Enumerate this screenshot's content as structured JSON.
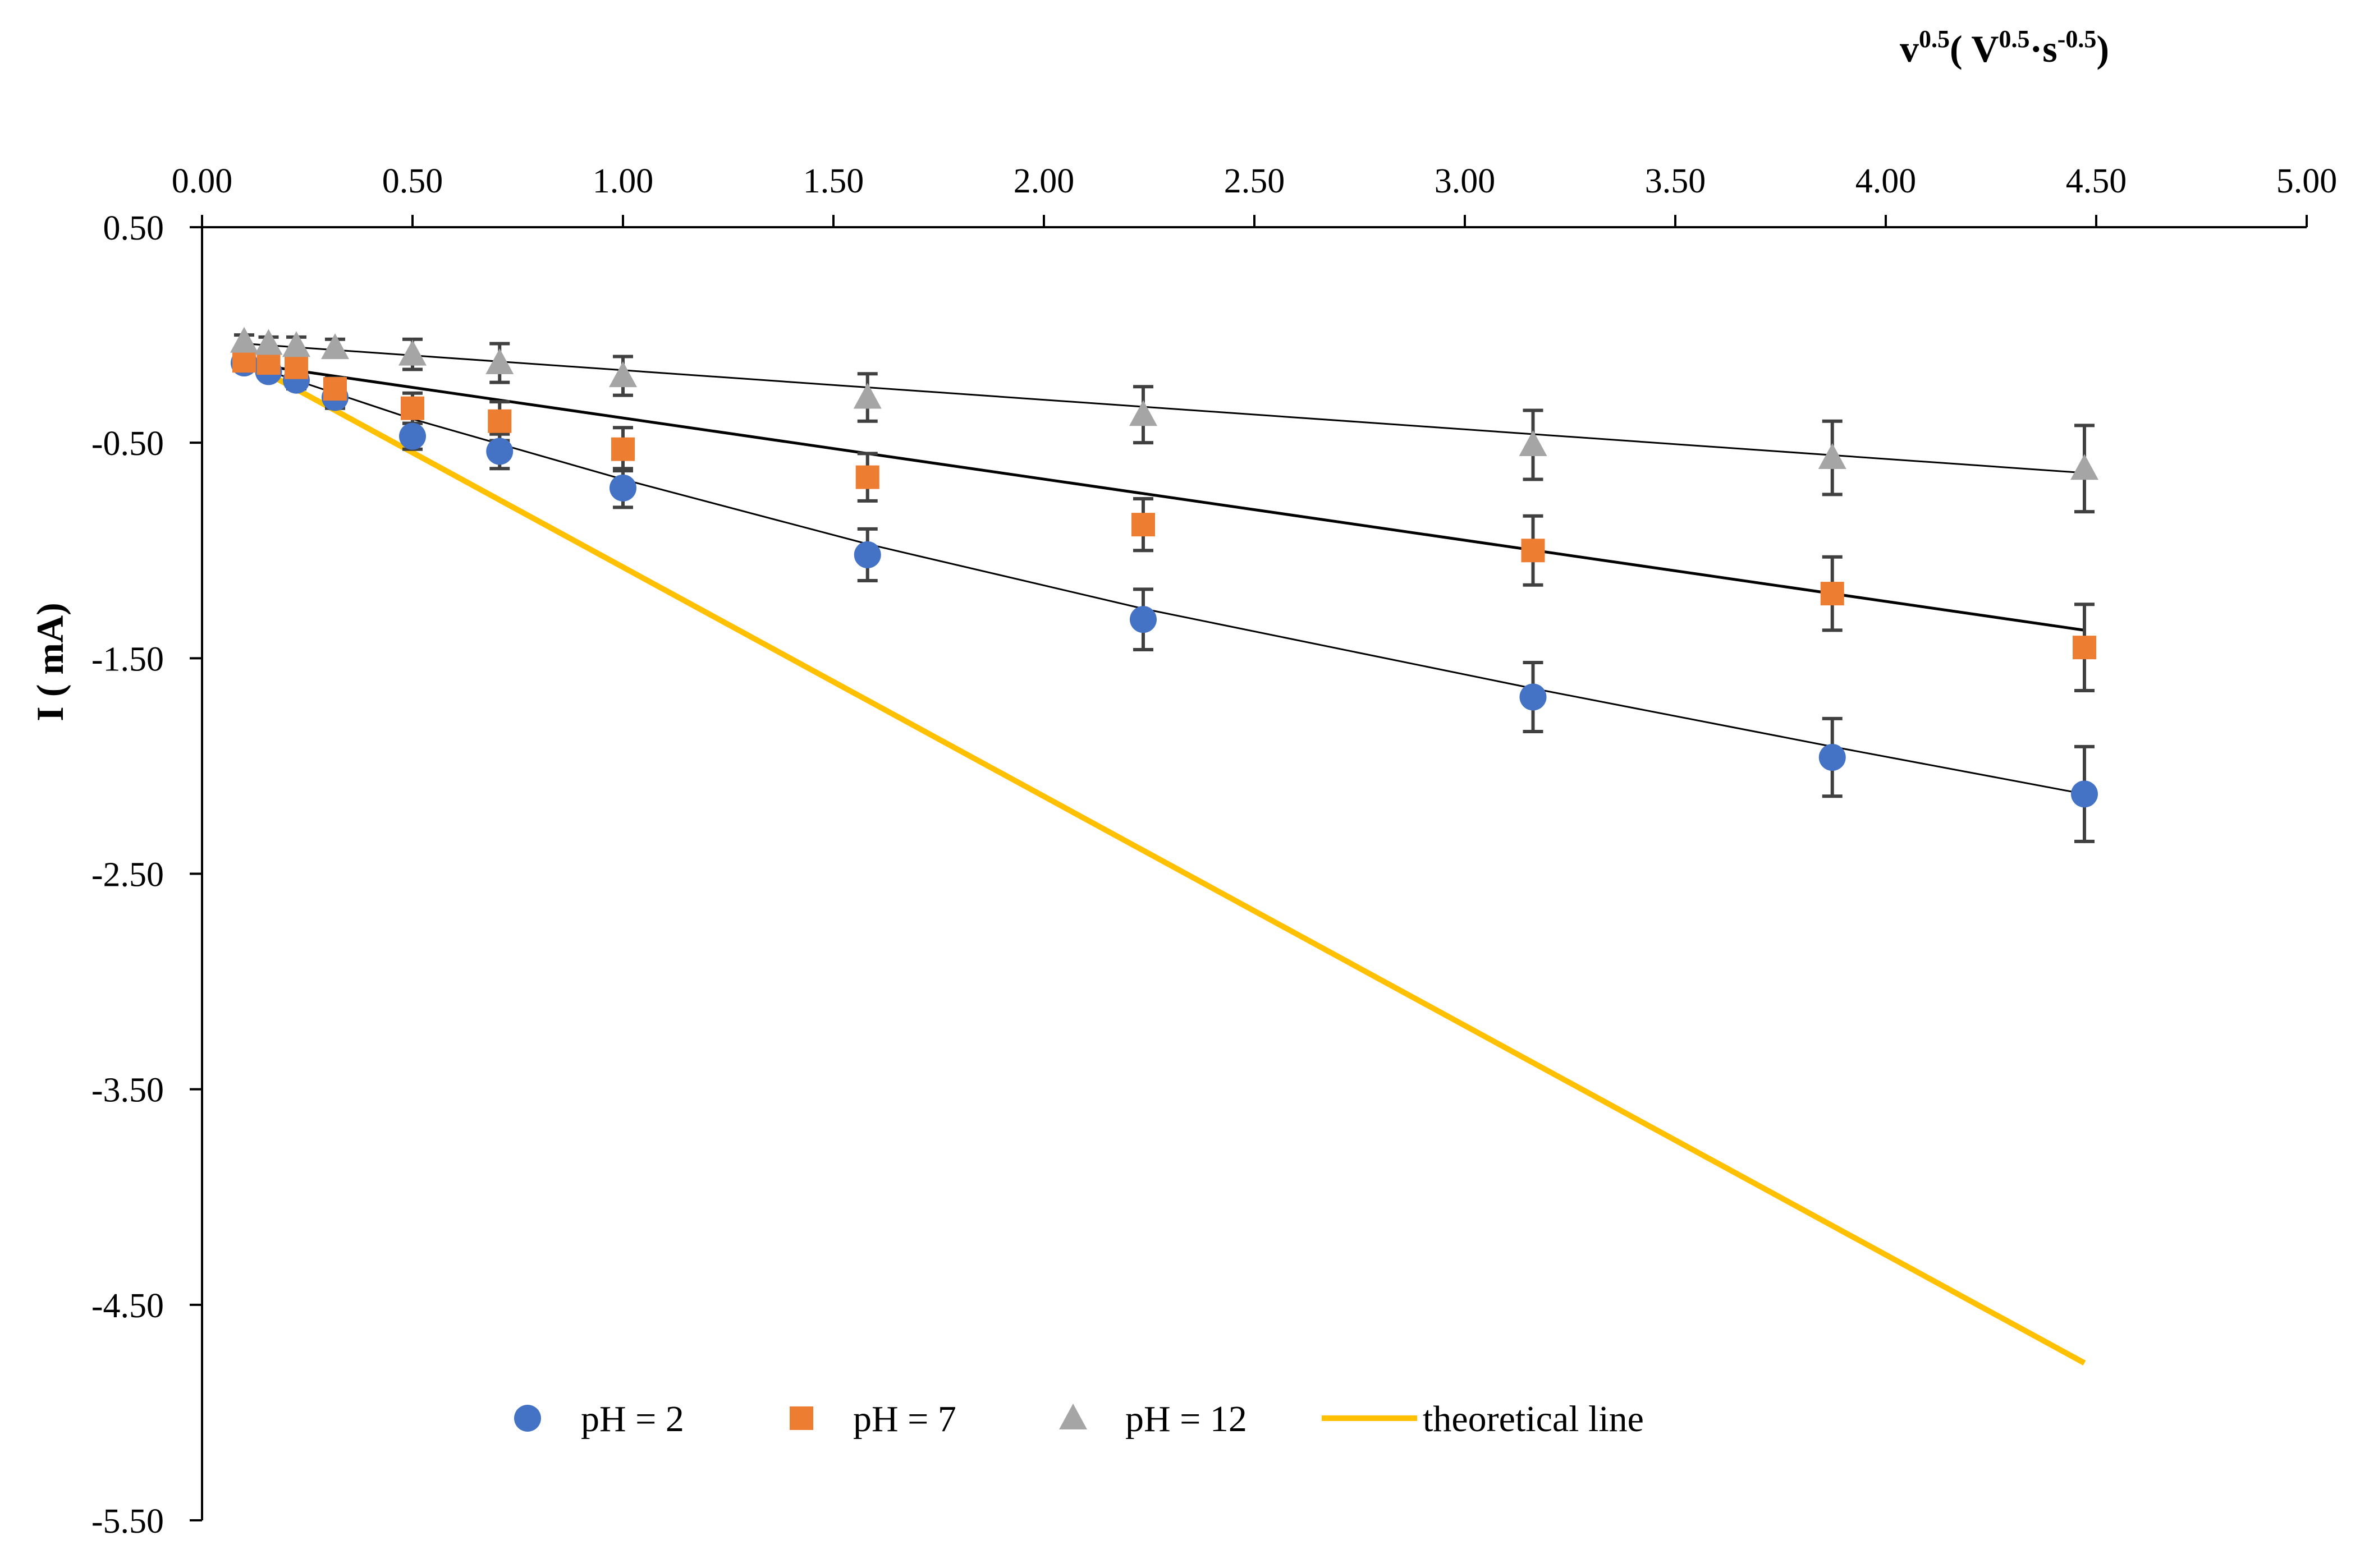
{
  "chart_data": {
    "type": "scatter",
    "title": "",
    "xlabel": {
      "base": "v",
      "base_sup": "0.5",
      "unit_open": "( V",
      "unit_sup1": "0.5",
      "unit_mid": "·s",
      "unit_sup2": "-0.5",
      "unit_close": ")"
    },
    "ylabel": "I ( mA)",
    "xlim": [
      0,
      5
    ],
    "ylim": [
      -5.5,
      0.5
    ],
    "x_axis_position": "top",
    "x_ticks": [
      0,
      0.5,
      1,
      1.5,
      2,
      2.5,
      3,
      3.5,
      4,
      4.5,
      5
    ],
    "x_tick_labels": [
      "0.00",
      "0.50",
      "1.00",
      "1.50",
      "2.00",
      "2.50",
      "3.00",
      "3.50",
      "4.00",
      "4.50",
      "5.00"
    ],
    "y_ticks": [
      0.5,
      -0.5,
      -1.5,
      -2.5,
      -3.5,
      -4.5,
      -5.5
    ],
    "y_tick_labels": [
      "0.50",
      "-0.50",
      "-1.50",
      "-2.50",
      "-3.50",
      "-4.50",
      "-5.50"
    ],
    "legend_position": "bottom-center",
    "x": [
      0.1,
      0.158,
      0.224,
      0.316,
      0.5,
      0.707,
      1.0,
      1.581,
      2.236,
      3.162,
      3.873,
      4.472
    ],
    "series": [
      {
        "name": "pH = 2",
        "marker": "circle",
        "color": "#4472C4",
        "values": [
          -0.13,
          -0.17,
          -0.21,
          -0.29,
          -0.47,
          -0.54,
          -0.71,
          -1.02,
          -1.32,
          -1.68,
          -1.96,
          -2.13
        ],
        "errors": [
          0.02,
          0.03,
          0.04,
          0.05,
          0.06,
          0.08,
          0.09,
          0.12,
          0.14,
          0.16,
          0.18,
          0.22
        ],
        "fit": {
          "x": [
            0.1,
            0.5,
            1.0,
            1.581,
            2.236,
            3.162,
            3.873,
            4.472
          ],
          "y": [
            -0.13,
            -0.39,
            -0.67,
            -0.97,
            -1.27,
            -1.64,
            -1.91,
            -2.13
          ]
        }
      },
      {
        "name": "pH = 7",
        "marker": "square",
        "color": "#ED7D31",
        "values": [
          -0.12,
          -0.13,
          -0.15,
          -0.25,
          -0.34,
          -0.4,
          -0.53,
          -0.66,
          -0.88,
          -1.0,
          -1.2,
          -1.45
        ],
        "errors": [
          0.02,
          0.03,
          0.04,
          0.05,
          0.07,
          0.09,
          0.1,
          0.11,
          0.12,
          0.16,
          0.17,
          0.2
        ],
        "fit": {
          "x": [
            0.1,
            4.472
          ],
          "y": [
            -0.13,
            -1.37
          ]
        }
      },
      {
        "name": "pH = 12",
        "marker": "triangle",
        "color": "#A5A5A5",
        "values": [
          -0.03,
          -0.04,
          -0.05,
          -0.06,
          -0.09,
          -0.13,
          -0.19,
          -0.29,
          -0.37,
          -0.51,
          -0.57,
          -0.62
        ],
        "errors": [
          0.03,
          0.03,
          0.04,
          0.04,
          0.07,
          0.09,
          0.09,
          0.11,
          0.13,
          0.16,
          0.17,
          0.2
        ],
        "fit": {
          "x": [
            0.1,
            4.472
          ],
          "y": [
            -0.04,
            -0.64
          ]
        }
      }
    ],
    "theoretical_line": {
      "name": "theoretical line",
      "color": "#FFC000",
      "x": [
        0.1,
        4.472
      ],
      "y": [
        -0.12,
        -4.77
      ]
    }
  }
}
